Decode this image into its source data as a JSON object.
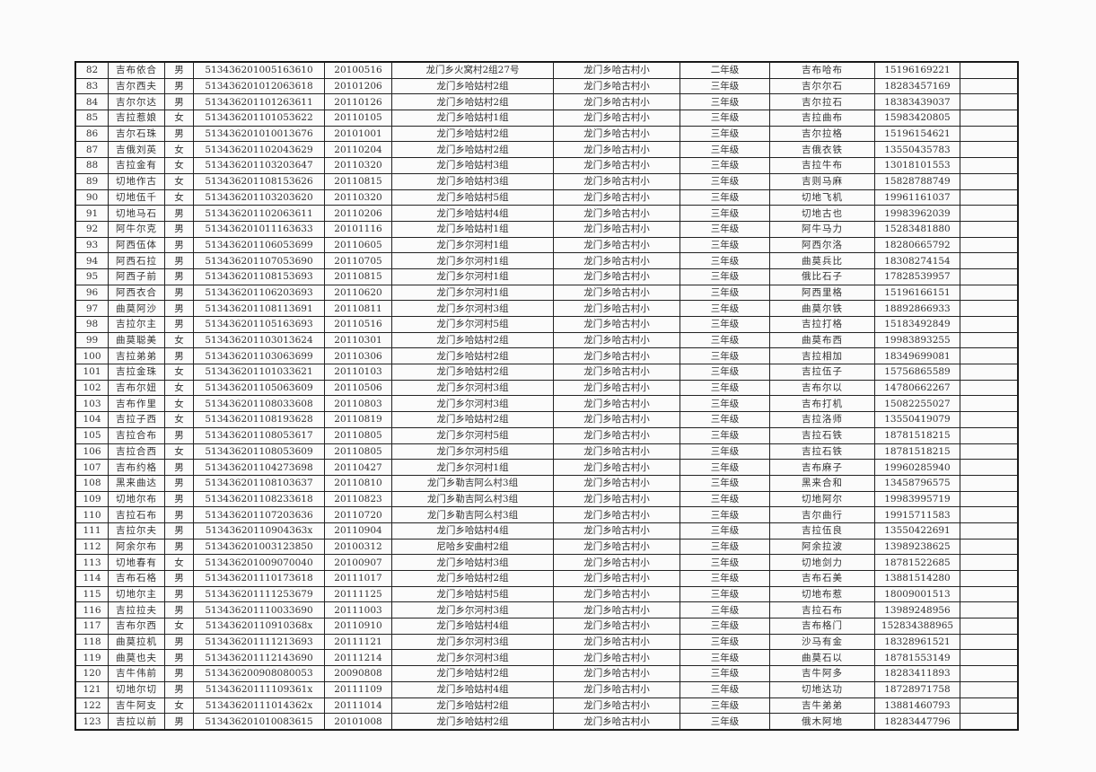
{
  "rows": [
    [
      "82",
      "吉布依合",
      "男",
      "513436201005163610",
      "20100516",
      "龙门乡火窝村2组27号",
      "龙门乡哈古村小",
      "二年级",
      "吉布哈布",
      "15196169221",
      ""
    ],
    [
      "83",
      "吉尔西夫",
      "男",
      "513436201012063618",
      "20101206",
      "龙门乡哈姑村2组",
      "龙门乡哈古村小",
      "三年级",
      "吉尔尔石",
      "18283457169",
      ""
    ],
    [
      "84",
      "吉尔尔达",
      "男",
      "513436201101263611",
      "20110126",
      "龙门乡哈姑村2组",
      "龙门乡哈古村小",
      "三年级",
      "吉尔拉石",
      "18383439037",
      ""
    ],
    [
      "85",
      "吉拉惹娘",
      "女",
      "513436201101053622",
      "20110105",
      "龙门乡哈姑村1组",
      "龙门乡哈古村小",
      "三年级",
      "吉拉曲布",
      "15983420805",
      ""
    ],
    [
      "86",
      "吉尔石珠",
      "男",
      "513436201010013676",
      "20101001",
      "龙门乡哈姑村2组",
      "龙门乡哈古村小",
      "三年级",
      "吉尔拉格",
      "15196154621",
      ""
    ],
    [
      "87",
      "吉俄刘英",
      "女",
      "513436201102043629",
      "20110204",
      "龙门乡哈姑村2组",
      "龙门乡哈古村小",
      "三年级",
      "吉俄衣铁",
      "13550435783",
      ""
    ],
    [
      "88",
      "吉拉金有",
      "女",
      "513436201103203647",
      "20110320",
      "龙门乡哈姑村3组",
      "龙门乡哈古村小",
      "三年级",
      "吉拉牛布",
      "13018101553",
      ""
    ],
    [
      "89",
      "切地作古",
      "女",
      "513436201108153626",
      "20110815",
      "龙门乡哈姑村3组",
      "龙门乡哈古村小",
      "三年级",
      "吉则马麻",
      "15828788749",
      ""
    ],
    [
      "90",
      "切地伍千",
      "女",
      "513436201103203620",
      "20110320",
      "龙门乡哈姑村5组",
      "龙门乡哈古村小",
      "三年级",
      "切地飞机",
      "19961161037",
      ""
    ],
    [
      "91",
      "切地马石",
      "男",
      "513436201102063611",
      "20110206",
      "龙门乡哈姑村4组",
      "龙门乡哈古村小",
      "三年级",
      "切地古也",
      "19983962039",
      ""
    ],
    [
      "92",
      "阿牛尔克",
      "男",
      "513436201011163633",
      "20101116",
      "龙门乡哈姑村1组",
      "龙门乡哈古村小",
      "三年级",
      "阿牛马力",
      "15283481880",
      ""
    ],
    [
      "93",
      "阿西伍体",
      "男",
      "513436201106053699",
      "20110605",
      "龙门乡尔河村1组",
      "龙门乡哈古村小",
      "三年级",
      "阿西尔洛",
      "18280665792",
      ""
    ],
    [
      "94",
      "阿西石拉",
      "男",
      "513436201107053690",
      "20110705",
      "龙门乡尔河村1组",
      "龙门乡哈古村小",
      "三年级",
      "曲莫兵比",
      "18308274154",
      ""
    ],
    [
      "95",
      "阿西子前",
      "男",
      "513436201108153693",
      "20110815",
      "龙门乡尔河村1组",
      "龙门乡哈古村小",
      "三年级",
      "俄比石子",
      "17828539957",
      ""
    ],
    [
      "96",
      "阿西衣合",
      "男",
      "513436201106203693",
      "20110620",
      "龙门乡尔河村1组",
      "龙门乡哈古村小",
      "三年级",
      "阿西里格",
      "15196166151",
      ""
    ],
    [
      "97",
      "曲莫阿沙",
      "男",
      "513436201108113691",
      "20110811",
      "龙门乡尔河村3组",
      "龙门乡哈古村小",
      "三年级",
      "曲莫尔铁",
      "18892866933",
      ""
    ],
    [
      "98",
      "吉拉尔主",
      "男",
      "513436201105163693",
      "20110516",
      "龙门乡尔河村5组",
      "龙门乡哈古村小",
      "三年级",
      "吉拉打格",
      "15183492849",
      ""
    ],
    [
      "99",
      "曲莫聪美",
      "女",
      "513436201103013624",
      "20110301",
      "龙门乡哈姑村2组",
      "龙门乡哈古村小",
      "三年级",
      "曲莫布西",
      "19983893255",
      ""
    ],
    [
      "100",
      "吉拉弟弟",
      "男",
      "513436201103063699",
      "20110306",
      "龙门乡哈姑村2组",
      "龙门乡哈古村小",
      "三年级",
      "吉拉相加",
      "18349699081",
      ""
    ],
    [
      "101",
      "吉拉金珠",
      "女",
      "513436201101033621",
      "20110103",
      "龙门乡哈姑村2组",
      "龙门乡哈古村小",
      "三年级",
      "吉拉伍子",
      "15756865589",
      ""
    ],
    [
      "102",
      "吉布尔妞",
      "女",
      "513436201105063609",
      "20110506",
      "龙门乡尔河村3组",
      "龙门乡哈古村小",
      "三年级",
      "吉布尔以",
      "14780662267",
      ""
    ],
    [
      "103",
      "吉布作里",
      "女",
      "513436201108033608",
      "20110803",
      "龙门乡尔河村3组",
      "龙门乡哈古村小",
      "三年级",
      "吉布打机",
      "15082255027",
      ""
    ],
    [
      "104",
      "吉拉子西",
      "女",
      "513436201108193628",
      "20110819",
      "龙门乡哈姑村2组",
      "龙门乡哈古村小",
      "三年级",
      "吉拉洛师",
      "13550419079",
      ""
    ],
    [
      "105",
      "吉拉合布",
      "男",
      "513436201108053617",
      "20110805",
      "龙门乡尔河村5组",
      "龙门乡哈古村小",
      "三年级",
      "吉拉石铁",
      "18781518215",
      ""
    ],
    [
      "106",
      "吉拉合西",
      "女",
      "513436201108053609",
      "20110805",
      "龙门乡尔河村5组",
      "龙门乡哈古村小",
      "三年级",
      "吉拉石铁",
      "18781518215",
      ""
    ],
    [
      "107",
      "吉布约格",
      "男",
      "513436201104273698",
      "20110427",
      "龙门乡尔河村1组",
      "龙门乡哈古村小",
      "三年级",
      "吉布麻子",
      "19960285940",
      ""
    ],
    [
      "108",
      "黑来曲达",
      "男",
      "513436201108103637",
      "20110810",
      "龙门乡勒吉阿么村3组",
      "龙门乡哈古村小",
      "三年级",
      "黑来合和",
      "13458796575",
      ""
    ],
    [
      "109",
      "切地尔布",
      "男",
      "513436201108233618",
      "20110823",
      "龙门乡勒吉阿么村3组",
      "龙门乡哈古村小",
      "三年级",
      "切地阿尔",
      "19983995719",
      ""
    ],
    [
      "110",
      "吉拉石布",
      "男",
      "513436201107203636",
      "20110720",
      "龙门乡勒吉阿么村3组",
      "龙门乡哈古村小",
      "三年级",
      "吉尔曲行",
      "19915711583",
      ""
    ],
    [
      "111",
      "吉拉尔夫",
      "男",
      "51343620110904363x",
      "20110904",
      "龙门乡哈姑村4组",
      "龙门乡哈古村小",
      "三年级",
      "吉拉伍良",
      "13550422691",
      ""
    ],
    [
      "112",
      "阿余尔布",
      "男",
      "513436201003123850",
      "20100312",
      "尼哈乡安曲村2组",
      "龙门乡哈古村小",
      "三年级",
      "阿余拉波",
      "13989238625",
      ""
    ],
    [
      "113",
      "切地春有",
      "女",
      "513436201009070040",
      "20100907",
      "龙门乡哈姑村3组",
      "龙门乡哈古村小",
      "三年级",
      "切地剑力",
      "18781522685",
      ""
    ],
    [
      "114",
      "吉布石格",
      "男",
      "513436201110173618",
      "20111017",
      "龙门乡哈姑村2组",
      "龙门乡哈古村小",
      "三年级",
      "吉布石美",
      "13881514280",
      ""
    ],
    [
      "115",
      "切地尔主",
      "男",
      "513436201111253679",
      "20111125",
      "龙门乡哈姑村5组",
      "龙门乡哈古村小",
      "三年级",
      "切地布惹",
      "18009001513",
      ""
    ],
    [
      "116",
      "吉拉拉夫",
      "男",
      "513436201110033690",
      "20111003",
      "龙门乡尔河村3组",
      "龙门乡哈古村小",
      "三年级",
      "吉拉石布",
      "13989248956",
      ""
    ],
    [
      "117",
      "吉布尔西",
      "女",
      "51343620110910368x",
      "20110910",
      "龙门乡哈姑村4组",
      "龙门乡哈古村小",
      "三年级",
      "吉布格门",
      "152834388965",
      ""
    ],
    [
      "118",
      "曲莫拉机",
      "男",
      "513436201111213693",
      "20111121",
      "龙门乡尔河村3组",
      "龙门乡哈古村小",
      "三年级",
      "沙马有金",
      "18328961521",
      ""
    ],
    [
      "119",
      "曲莫也夫",
      "男",
      "513436201112143690",
      "20111214",
      "龙门乡尔河村3组",
      "龙门乡哈古村小",
      "三年级",
      "曲莫石以",
      "18781553149",
      ""
    ],
    [
      "120",
      "吉牛伟前",
      "男",
      "513436200908080053",
      "20090808",
      "龙门乡哈姑村2组",
      "龙门乡哈古村小",
      "三年级",
      "吉牛阿多",
      "18283411893",
      ""
    ],
    [
      "121",
      "切地尔切",
      "男",
      "51343620111109361x",
      "20111109",
      "龙门乡哈姑村4组",
      "龙门乡哈古村小",
      "三年级",
      "切地达功",
      "18728971758",
      ""
    ],
    [
      "122",
      "吉牛阿支",
      "女",
      "51343620111014362x",
      "20111014",
      "龙门乡哈姑村2组",
      "龙门乡哈古村小",
      "三年级",
      "吉牛弟弟",
      "13881460793",
      ""
    ],
    [
      "123",
      "吉拉以前",
      "男",
      "513436201010083615",
      "20101008",
      "龙门乡哈姑村2组",
      "龙门乡哈古村小",
      "三年级",
      "俄木阿地",
      "18283447796",
      ""
    ]
  ]
}
